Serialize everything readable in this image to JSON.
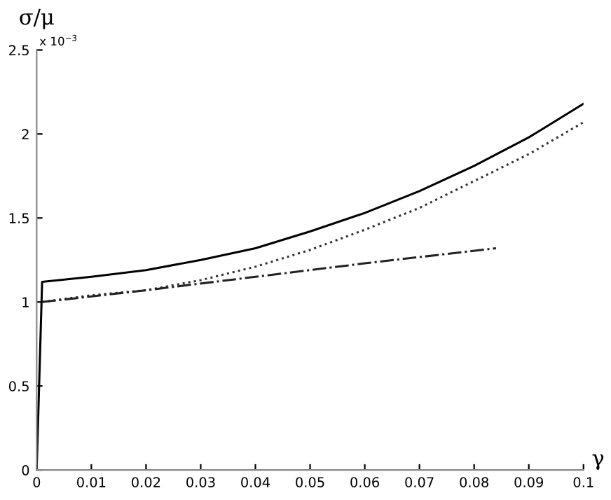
{
  "chart_data": {
    "type": "line",
    "ylabel": "σ/μ",
    "xlabel": "γ",
    "annotations": [
      "x 10$^{−3}$"
    ],
    "xlim": [
      0,
      0.1
    ],
    "xticks": [
      0,
      0.01,
      0.02,
      0.03,
      0.04,
      0.05,
      0.06,
      0.07,
      0.08,
      0.09,
      0.1
    ],
    "ylim": [
      0,
      2.5
    ],
    "yticks": [
      0,
      0.5,
      1,
      1.5,
      2,
      2.5
    ],
    "grid": false,
    "legend": false,
    "marker": "none",
    "series": [
      {
        "color": "#000000",
        "line_style": "solid",
        "x": [
          0,
          0.001,
          0.01,
          0.02,
          0.03,
          0.04,
          0.05,
          0.06,
          0.07,
          0.08,
          0.09,
          0.1
        ],
        "values": [
          0,
          1.12,
          1.15,
          1.19,
          1.25,
          1.32,
          1.42,
          1.53,
          1.66,
          1.81,
          1.98,
          2.18
        ]
      },
      {
        "color": "#333333",
        "line_style": "dotted",
        "x": [
          0.001,
          0.01,
          0.02,
          0.03,
          0.04,
          0.05,
          0.06,
          0.07,
          0.08,
          0.09,
          0.1
        ],
        "values": [
          1.0,
          1.04,
          1.07,
          1.13,
          1.21,
          1.31,
          1.43,
          1.56,
          1.72,
          1.88,
          2.07
        ]
      },
      {
        "color": "#222222",
        "line_style": "dashdot",
        "x": [
          0.001,
          0.02,
          0.04,
          0.06,
          0.084
        ],
        "values": [
          1.0,
          1.07,
          1.15,
          1.23,
          1.32
        ]
      }
    ]
  }
}
